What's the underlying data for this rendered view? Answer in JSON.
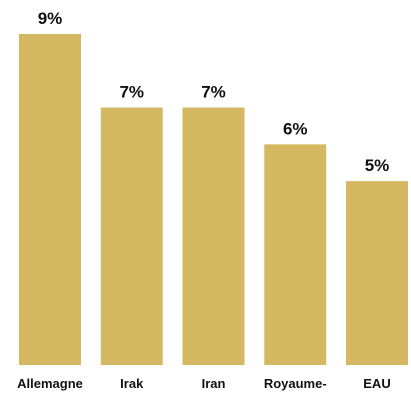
{
  "chart_data": {
    "type": "bar",
    "categories": [
      "Allemagne",
      "Irak",
      "Iran",
      "Royaume-",
      "EAU"
    ],
    "values": [
      9,
      7,
      7,
      6,
      5
    ],
    "value_labels": [
      "9%",
      "7%",
      "7%",
      "6%",
      "5%"
    ],
    "title": "",
    "xlabel": "",
    "ylabel": "",
    "ylim": [
      0,
      9
    ],
    "grid": false,
    "legend": "none",
    "colors": {
      "bar": "#D4B962",
      "text": "#111111"
    }
  }
}
